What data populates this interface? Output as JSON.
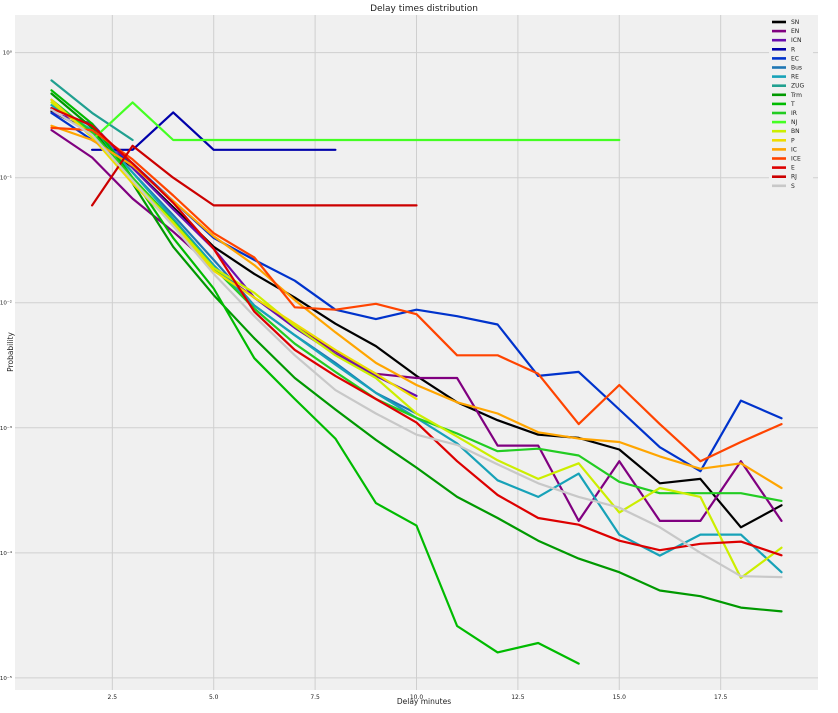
{
  "chart_data": {
    "type": "line",
    "title": "Delay times distribution",
    "xlabel": "Delay minutes",
    "ylabel": "Probability",
    "xlim": [
      0.1,
      19.9
    ],
    "ylim": [
      8e-06,
      2.0
    ],
    "y_scale": "log",
    "grid": true,
    "legend_position": "top-right",
    "x_ticks": [
      2.5,
      5.0,
      7.5,
      10.0,
      12.5,
      15.0,
      17.5
    ],
    "x_tick_labels": [
      "2.5",
      "5.0",
      "7.5",
      "10.0",
      "12.5",
      "15.0",
      "17.5"
    ],
    "y_ticks": [
      1e-05,
      0.0001,
      0.001,
      0.01,
      0.1,
      1
    ],
    "y_tick_labels": [
      "10⁻⁵",
      "10⁻⁴",
      "10⁻³",
      "10⁻²",
      "10⁻¹",
      "10⁰"
    ],
    "series": [
      {
        "name": "SN",
        "color": "#000000",
        "x": [
          1,
          2,
          3,
          4,
          5,
          6,
          7,
          8,
          9,
          10,
          11,
          12,
          13,
          14,
          15,
          16,
          17,
          18,
          19
        ],
        "y": [
          0.34,
          0.23,
          0.12,
          0.058,
          0.028,
          0.017,
          0.011,
          0.0068,
          0.0045,
          0.0026,
          0.0016,
          0.00115,
          0.00088,
          0.00083,
          0.00067,
          0.00036,
          0.00039,
          0.00016,
          0.00024
        ]
      },
      {
        "name": "EN",
        "color": "#800080",
        "x": [
          1,
          2,
          3,
          4,
          5,
          6,
          7,
          8,
          9,
          10,
          11,
          12,
          13,
          14,
          15,
          16,
          17,
          18,
          19
        ],
        "y": [
          0.24,
          0.145,
          0.068,
          0.037,
          0.019,
          0.011,
          0.0065,
          0.0041,
          0.0027,
          0.0025,
          0.0025,
          0.00072,
          0.00072,
          0.00018,
          0.00054,
          0.00018,
          0.00018,
          0.00054,
          0.00018
        ]
      },
      {
        "name": "ICN",
        "color": "#6a0dad",
        "x": [
          1,
          2,
          3,
          4,
          5,
          6,
          7,
          8,
          9,
          10
        ],
        "y": [
          0.33,
          0.27,
          0.12,
          0.056,
          0.027,
          0.011,
          0.0063,
          0.0039,
          0.0026,
          0.0018
        ]
      },
      {
        "name": "R",
        "color": "#0000aa",
        "x": [
          2,
          3,
          4,
          5,
          6,
          7,
          8
        ],
        "y": [
          0.167,
          0.167,
          0.333,
          0.167,
          0.167,
          0.167,
          0.167
        ]
      },
      {
        "name": "EC",
        "color": "#0033cc",
        "x": [
          1,
          2,
          3,
          4,
          5,
          6,
          7,
          8,
          9,
          10,
          11,
          12,
          13,
          14,
          15,
          16,
          17,
          18,
          19
        ],
        "y": [
          0.33,
          0.2,
          0.13,
          0.065,
          0.033,
          0.022,
          0.015,
          0.0088,
          0.0074,
          0.0088,
          0.0078,
          0.0067,
          0.0026,
          0.0028,
          0.0014,
          0.0007,
          0.00045,
          0.00165,
          0.00119
        ]
      },
      {
        "name": "Bus",
        "color": "#1f77b4",
        "x": [
          1,
          2,
          3,
          4,
          5,
          6,
          7,
          8,
          9,
          10
        ],
        "y": [
          0.36,
          0.26,
          0.11,
          0.05,
          0.022,
          0.0095,
          0.0055,
          0.0033,
          0.0019,
          0.0013
        ]
      },
      {
        "name": "RE",
        "color": "#17a2b8",
        "x": [
          1,
          2,
          3,
          4,
          5,
          6,
          7,
          8,
          9,
          10,
          11,
          12,
          13,
          14,
          15,
          16,
          17,
          18,
          19
        ],
        "y": [
          0.38,
          0.24,
          0.11,
          0.047,
          0.02,
          0.0095,
          0.0055,
          0.0032,
          0.0019,
          0.0012,
          0.00075,
          0.00038,
          0.00028,
          0.00043,
          0.00014,
          9.5e-05,
          0.00014,
          0.00014,
          7e-05
        ]
      },
      {
        "name": "ZUG",
        "color": "#20a090",
        "x": [
          1,
          2,
          3
        ],
        "y": [
          0.6,
          0.33,
          0.2
        ]
      },
      {
        "name": "Trm",
        "color": "#009900",
        "x": [
          1,
          2,
          3,
          4,
          5,
          6,
          7,
          8,
          9,
          10,
          11,
          12,
          13,
          14,
          15,
          16,
          17,
          18,
          19
        ],
        "y": [
          0.47,
          0.25,
          0.09,
          0.028,
          0.0115,
          0.0052,
          0.0025,
          0.0014,
          0.0008,
          0.00048,
          0.00028,
          0.00019,
          0.000125,
          9e-05,
          7e-05,
          5e-05,
          4.5e-05,
          3.65e-05,
          3.4e-05
        ]
      },
      {
        "name": "T",
        "color": "#00bb00",
        "x": [
          1,
          2,
          3,
          4,
          5,
          6,
          7,
          8,
          9,
          10,
          11,
          12,
          13,
          14
        ],
        "y": [
          0.5,
          0.27,
          0.1,
          0.033,
          0.013,
          0.0036,
          0.0017,
          0.00082,
          0.00025,
          0.000165,
          2.6e-05,
          1.6e-05,
          1.9e-05,
          1.3e-05
        ]
      },
      {
        "name": "IR",
        "color": "#22cc22",
        "x": [
          1,
          2,
          3,
          4,
          5,
          6,
          7,
          8,
          9,
          10,
          11,
          12,
          13,
          14,
          15,
          16,
          17,
          18,
          19
        ],
        "y": [
          0.42,
          0.23,
          0.1,
          0.045,
          0.019,
          0.009,
          0.0047,
          0.0028,
          0.0017,
          0.0012,
          0.0009,
          0.00065,
          0.00068,
          0.0006,
          0.00037,
          0.0003,
          0.0003,
          0.0003,
          0.00026
        ]
      },
      {
        "name": "NJ",
        "color": "#44ff22",
        "x": [
          2,
          3,
          4,
          5,
          6,
          7,
          8,
          9,
          10,
          11,
          12,
          13,
          14,
          15
        ],
        "y": [
          0.2,
          0.4,
          0.2,
          0.2,
          0.2,
          0.2,
          0.2,
          0.2,
          0.2,
          0.2,
          0.2,
          0.2,
          0.2,
          0.2
        ]
      },
      {
        "name": "BN",
        "color": "#ccee00",
        "x": [
          1,
          2,
          3,
          4,
          5,
          6,
          7,
          8,
          9,
          10,
          11,
          12,
          13,
          14,
          15,
          16,
          17,
          18,
          19
        ],
        "y": [
          0.4,
          0.22,
          0.095,
          0.044,
          0.019,
          0.012,
          0.0065,
          0.0038,
          0.0025,
          0.0013,
          0.00085,
          0.00055,
          0.00039,
          0.00052,
          0.00021,
          0.00033,
          0.00028,
          6.3e-05,
          0.00011
        ]
      },
      {
        "name": "P",
        "color": "#eedd00",
        "x": [
          1,
          2,
          3,
          4,
          5,
          6,
          7,
          8,
          9,
          10
        ],
        "y": [
          0.42,
          0.21,
          0.09,
          0.042,
          0.018,
          0.011,
          0.0068,
          0.0042,
          0.0027,
          0.0017
        ]
      },
      {
        "name": "IC",
        "color": "#ffa500",
        "x": [
          1,
          2,
          3,
          4,
          5,
          6,
          7,
          8,
          9,
          10,
          11,
          12,
          13,
          14,
          15,
          16,
          17,
          18,
          19
        ],
        "y": [
          0.26,
          0.2,
          0.125,
          0.065,
          0.034,
          0.02,
          0.0105,
          0.0058,
          0.0033,
          0.0022,
          0.0016,
          0.0013,
          0.00092,
          0.00082,
          0.00077,
          0.00059,
          0.00047,
          0.00052,
          0.00033
        ]
      },
      {
        "name": "ICE",
        "color": "#ff4400",
        "x": [
          1,
          2,
          3,
          4,
          5,
          6,
          7,
          8,
          9,
          10,
          11,
          12,
          13,
          14,
          15,
          16,
          17,
          18,
          19
        ],
        "y": [
          0.25,
          0.24,
          0.14,
          0.072,
          0.036,
          0.023,
          0.0092,
          0.0088,
          0.0098,
          0.0081,
          0.0038,
          0.0038,
          0.0027,
          0.00107,
          0.0022,
          0.00107,
          0.00054,
          0.00077,
          0.00107
        ]
      },
      {
        "name": "E",
        "color": "#dd0000",
        "x": [
          1,
          2,
          3,
          4,
          5,
          6,
          7,
          8,
          9,
          10,
          11,
          12,
          13,
          14,
          15,
          16,
          17,
          18,
          19
        ],
        "y": [
          0.36,
          0.26,
          0.13,
          0.063,
          0.027,
          0.0085,
          0.0042,
          0.0026,
          0.0017,
          0.0011,
          0.00054,
          0.00029,
          0.00019,
          0.000168,
          0.000125,
          0.000105,
          0.000118,
          0.000123,
          9.55e-05
        ]
      },
      {
        "name": "RJ",
        "color": "#cc0000",
        "x": [
          2,
          3,
          4,
          5,
          6,
          7,
          8,
          9,
          10
        ],
        "y": [
          0.06,
          0.18,
          0.1,
          0.06,
          0.06,
          0.06,
          0.06,
          0.06,
          0.06
        ]
      },
      {
        "name": "S",
        "color": "#c8c8c8",
        "x": [
          1,
          2,
          3,
          4,
          5,
          6,
          7,
          8,
          9,
          10,
          11,
          12,
          13,
          14,
          15,
          16,
          17,
          18,
          19
        ],
        "y": [
          0.35,
          0.22,
          0.095,
          0.041,
          0.017,
          0.0078,
          0.0038,
          0.002,
          0.0013,
          0.00088,
          0.00073,
          0.00051,
          0.00036,
          0.00028,
          0.00023,
          0.00016,
          0.0001,
          6.5e-05,
          6.4e-05
        ]
      }
    ]
  }
}
